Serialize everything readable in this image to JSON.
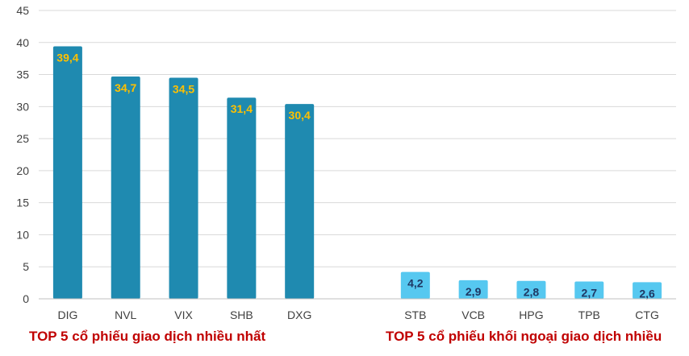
{
  "chart_data": {
    "type": "bar",
    "ylim": [
      0,
      45
    ],
    "yticks": [
      0,
      5,
      10,
      15,
      20,
      25,
      30,
      35,
      40,
      45
    ],
    "grid": true,
    "groups": [
      {
        "caption": "TOP 5 cổ phiếu giao dịch nhiều nhất",
        "categories": [
          "DIG",
          "NVL",
          "VIX",
          "SHB",
          "DXG"
        ],
        "values": [
          39.4,
          34.7,
          34.5,
          31.4,
          30.4
        ],
        "labels": [
          "39,4",
          "34,7",
          "34,5",
          "31,4",
          "30,4"
        ],
        "color": "#1f8ab0",
        "label_color": "#ffc000"
      },
      {
        "caption": "TOP 5 cổ phiếu khối ngoại giao dịch nhiều",
        "categories": [
          "STB",
          "VCB",
          "HPG",
          "TPB",
          "CTG"
        ],
        "values": [
          4.2,
          2.9,
          2.8,
          2.7,
          2.6
        ],
        "labels": [
          "4,2",
          "2,9",
          "2,8",
          "2,7",
          "2,6"
        ],
        "color": "#56c8f0",
        "label_color": "#1f3864"
      }
    ]
  }
}
